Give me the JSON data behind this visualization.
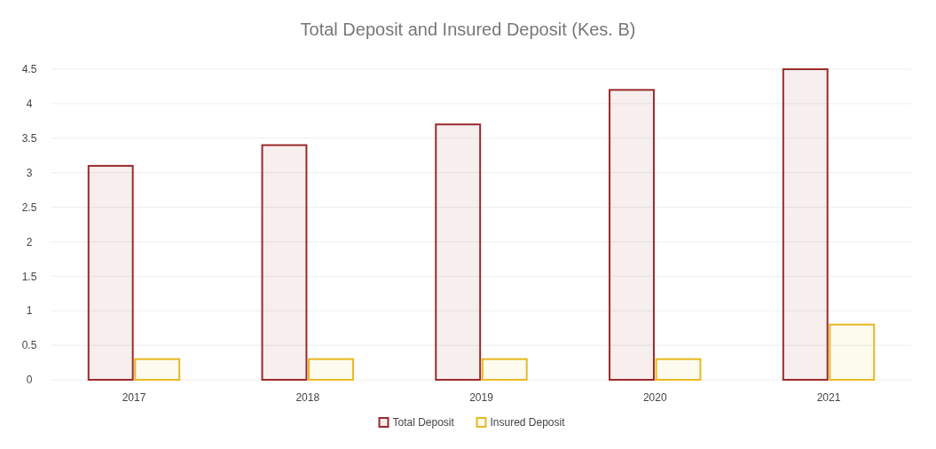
{
  "chart_data": {
    "type": "bar",
    "title": "Total Deposit and Insured Deposit (Kes. B)",
    "categories": [
      "2017",
      "2018",
      "2019",
      "2020",
      "2021"
    ],
    "series": [
      {
        "name": "Total Deposit",
        "color": "#9b2a2a",
        "values": [
          3.1,
          3.4,
          3.7,
          4.2,
          4.5
        ]
      },
      {
        "name": "Insured Deposit",
        "color": "#e8b923",
        "values": [
          0.3,
          0.3,
          0.3,
          0.3,
          0.8
        ]
      }
    ],
    "ylim": [
      0,
      4.5
    ],
    "yticks": [
      0,
      0.5,
      1,
      1.5,
      2,
      2.5,
      3,
      3.5,
      4,
      4.5
    ],
    "grid": "y",
    "legend": "bottom"
  }
}
